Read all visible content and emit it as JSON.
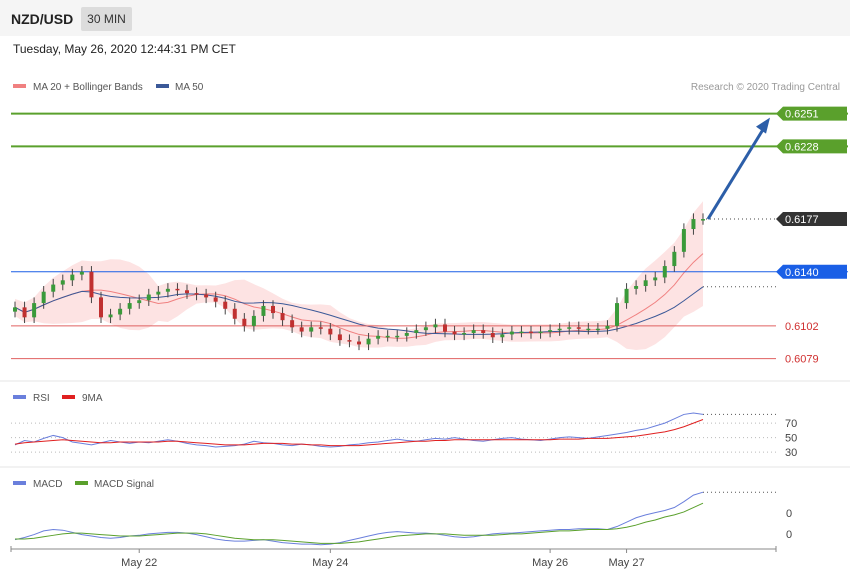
{
  "header": {
    "symbol": "NZD/USD",
    "timeframe": "30 MIN"
  },
  "datetime": "Tuesday, May 26, 2020 12:44:31 PM CET",
  "copyright": "Research © 2020 Trading Central",
  "colors": {
    "bollinger": "#f08080",
    "ma50": "#3b5998",
    "target": "#5aa02c",
    "pivot": "#1a5fe6",
    "current": "#333333",
    "support": "#e06060",
    "rsi": "#6a7fdc",
    "rsi_ma": "#e02020",
    "macd": "#6a7fdc",
    "macd_signal": "#5aa02c",
    "arrow": "#2c5ea8",
    "candle_up": "#3a9a3a",
    "candle_down": "#c03030"
  },
  "chart_data": [
    {
      "type": "line",
      "panel": "price",
      "legend": [
        "MA 20 + Bollinger Bands",
        "MA 50"
      ],
      "ylim": [
        0.6064,
        0.6262
      ],
      "x_ticks": [
        "May 22",
        "May 24",
        "May 26",
        "May 27"
      ],
      "levels": [
        {
          "value": 0.6251,
          "label": "0.6251",
          "kind": "target"
        },
        {
          "value": 0.6228,
          "label": "0.6228",
          "kind": "target"
        },
        {
          "value": 0.6177,
          "label": "0.6177",
          "kind": "current"
        },
        {
          "value": 0.614,
          "label": "0.6140",
          "kind": "pivot"
        },
        {
          "value": 0.6102,
          "label": "0.6102",
          "kind": "support"
        },
        {
          "value": 0.6079,
          "label": "0.6079",
          "kind": "support"
        }
      ],
      "close_series": [
        0.6115,
        0.6108,
        0.6118,
        0.6126,
        0.6131,
        0.6134,
        0.6138,
        0.614,
        0.6122,
        0.6108,
        0.611,
        0.6114,
        0.6118,
        0.612,
        0.6124,
        0.6126,
        0.6128,
        0.6127,
        0.6125,
        0.6124,
        0.6122,
        0.6119,
        0.6114,
        0.6107,
        0.6102,
        0.6109,
        0.6116,
        0.6111,
        0.6106,
        0.6101,
        0.6098,
        0.6101,
        0.61,
        0.6096,
        0.6092,
        0.6091,
        0.6089,
        0.6093,
        0.6095,
        0.6095,
        0.6095,
        0.6097,
        0.6099,
        0.6101,
        0.6103,
        0.6098,
        0.6096,
        0.6097,
        0.6099,
        0.6097,
        0.6094,
        0.6096,
        0.6098,
        0.6098,
        0.6097,
        0.6098,
        0.6099,
        0.61,
        0.6101,
        0.61,
        0.61,
        0.61,
        0.6102,
        0.6118,
        0.6128,
        0.613,
        0.6134,
        0.6136,
        0.6144,
        0.6154,
        0.617,
        0.6177,
        0.6177
      ]
    },
    {
      "type": "line",
      "panel": "rsi",
      "legend": [
        "RSI",
        "9MA"
      ],
      "ylim": [
        15,
        95
      ],
      "y_ticks": [
        70,
        50,
        30
      ],
      "series": [
        {
          "name": "RSI",
          "values": [
            40,
            46,
            44,
            49,
            53,
            50,
            44,
            42,
            40,
            43,
            46,
            44,
            42,
            44,
            43,
            45,
            47,
            45,
            42,
            40,
            39,
            37,
            38,
            39,
            41,
            45,
            43,
            42,
            40,
            39,
            41,
            40,
            38,
            37,
            38,
            40,
            41,
            43,
            44,
            46,
            48,
            46,
            45,
            47,
            49,
            48,
            50,
            48,
            46,
            45,
            47,
            49,
            50,
            48,
            47,
            46,
            48,
            50,
            51,
            50,
            49,
            51,
            53,
            55,
            57,
            60,
            62,
            66,
            70,
            76,
            82,
            84,
            82
          ]
        },
        {
          "name": "9MA",
          "values": [
            41,
            43,
            44,
            45,
            46,
            47,
            46,
            45,
            44,
            43,
            43,
            44,
            44,
            44,
            44,
            44,
            45,
            45,
            44,
            43,
            42,
            41,
            40,
            40,
            40,
            41,
            42,
            42,
            42,
            41,
            41,
            40,
            40,
            39,
            39,
            39,
            39,
            40,
            41,
            42,
            43,
            44,
            45,
            45,
            46,
            46,
            47,
            47,
            47,
            47,
            47,
            47,
            47,
            47,
            47,
            47,
            47,
            48,
            48,
            48,
            49,
            49,
            49,
            50,
            51,
            52,
            54,
            56,
            58,
            61,
            65,
            70,
            75
          ]
        }
      ]
    },
    {
      "type": "line",
      "panel": "macd",
      "legend": [
        "MACD",
        "MACD Signal"
      ],
      "y_ticks": [
        "0",
        "0"
      ],
      "series": [
        {
          "name": "MACD",
          "values": [
            -0.4,
            -0.1,
            0.3,
            0.8,
            1.0,
            0.9,
            0.6,
            0.3,
            0.1,
            -0.1,
            -0.2,
            -0.1,
            0.1,
            0.2,
            0.4,
            0.5,
            0.6,
            0.6,
            0.5,
            0.3,
            0.0,
            -0.3,
            -0.5,
            -0.6,
            -0.6,
            -0.5,
            -0.4,
            -0.6,
            -0.8,
            -0.9,
            -1.0,
            -1.0,
            -1.1,
            -1.0,
            -0.8,
            -0.5,
            -0.2,
            0.1,
            0.4,
            0.6,
            0.7,
            0.6,
            0.5,
            0.5,
            0.4,
            0.2,
            0.0,
            -0.1,
            0.0,
            0.2,
            0.4,
            0.5,
            0.5,
            0.6,
            0.7,
            0.8,
            0.9,
            1.0,
            1.0,
            1.1,
            1.1,
            1.1,
            1.0,
            1.4,
            2.0,
            2.6,
            3.0,
            3.3,
            3.6,
            4.0,
            4.8,
            5.7,
            6.1
          ]
        },
        {
          "name": "MACD Signal",
          "values": [
            -0.3,
            -0.3,
            -0.2,
            0.0,
            0.2,
            0.4,
            0.5,
            0.5,
            0.4,
            0.3,
            0.2,
            0.1,
            0.1,
            0.1,
            0.2,
            0.3,
            0.4,
            0.5,
            0.5,
            0.5,
            0.4,
            0.2,
            0.0,
            -0.2,
            -0.3,
            -0.4,
            -0.4,
            -0.4,
            -0.5,
            -0.6,
            -0.7,
            -0.8,
            -0.9,
            -0.9,
            -0.9,
            -0.8,
            -0.7,
            -0.5,
            -0.3,
            -0.1,
            0.1,
            0.2,
            0.3,
            0.4,
            0.4,
            0.4,
            0.3,
            0.2,
            0.2,
            0.2,
            0.2,
            0.3,
            0.4,
            0.4,
            0.5,
            0.6,
            0.7,
            0.8,
            0.8,
            0.9,
            1.0,
            1.0,
            1.0,
            1.1,
            1.3,
            1.6,
            2.0,
            2.3,
            2.7,
            3.0,
            3.4,
            4.0,
            4.6
          ]
        }
      ]
    }
  ]
}
